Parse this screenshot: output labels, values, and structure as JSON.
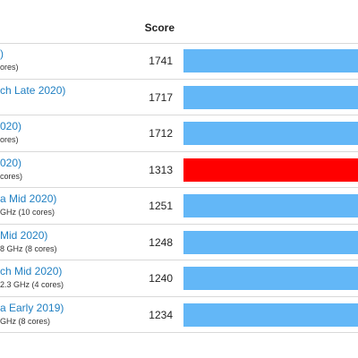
{
  "header": {
    "score_label": "Score"
  },
  "colors": {
    "bar": "#63b7f7",
    "highlight": "#ff0000",
    "link": "#1f7fc2"
  },
  "chart_data": {
    "type": "bar",
    "series": [
      {
        "values": [
          1741,
          1717,
          1712,
          1313,
          1251,
          1248,
          1240,
          1234
        ]
      }
    ],
    "highlight_index": 3
  },
  "rows": [
    {
      "name": ")",
      "sub": "ores)",
      "score": "1741",
      "value": 1741,
      "highlight": false
    },
    {
      "name": "ch Late 2020)",
      "sub": "",
      "score": "1717",
      "value": 1717,
      "highlight": false
    },
    {
      "name": "020)",
      "sub": "ores)",
      "score": "1712",
      "value": 1712,
      "highlight": false
    },
    {
      "name": "020)",
      "sub": "cores)",
      "score": "1313",
      "value": 1313,
      "highlight": true
    },
    {
      "name": "a Mid 2020)",
      "sub": "GHz (10 cores)",
      "score": "1251",
      "value": 1251,
      "highlight": false
    },
    {
      "name": "Mid 2020)",
      "sub": "8 GHz (8 cores)",
      "score": "1248",
      "value": 1248,
      "highlight": false
    },
    {
      "name": "ch Mid 2020)",
      "sub": "2.3 GHz (4 cores)",
      "score": "1240",
      "value": 1240,
      "highlight": false
    },
    {
      "name": "a Early 2019)",
      "sub": "GHz (8 cores)",
      "score": "1234",
      "value": 1234,
      "highlight": false
    }
  ]
}
